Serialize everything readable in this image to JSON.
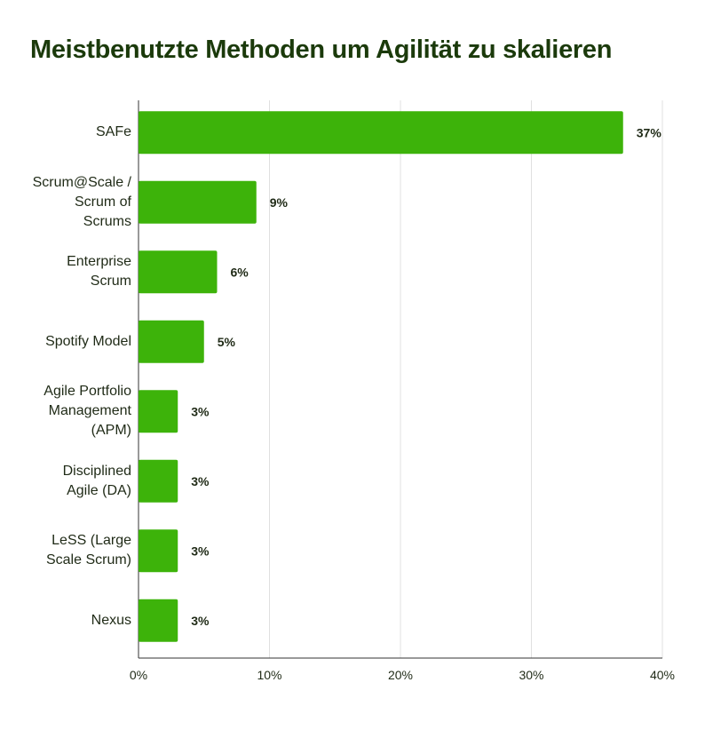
{
  "chart_data": {
    "type": "bar",
    "orientation": "horizontal",
    "title": "Meistbenutzte Methoden um Agilität zu skalieren",
    "categories": [
      "SAFe",
      "Scrum@Scale /\nScrum of\nScrums",
      "Enterprise\nScrum",
      "Spotify Model",
      "Agile Portfolio\nManagement\n(APM)",
      "Disciplined\nAgile (DA)",
      "LeSS (Large\nScale Scrum)",
      "Nexus"
    ],
    "values": [
      37,
      9,
      6,
      5,
      3,
      3,
      3,
      3
    ],
    "data_labels": [
      "37%",
      "9%",
      "6%",
      "5%",
      "3%",
      "3%",
      "3%",
      "3%"
    ],
    "xlim": [
      0,
      40
    ],
    "x_ticks": [
      "0%",
      "10%",
      "20%",
      "30%",
      "40%"
    ],
    "grid": true,
    "colors": {
      "bar": "#3db30a",
      "title": "#1b3a0b",
      "text": "#1f2a16",
      "grid": "#e0e0e0",
      "axis": "#333333"
    }
  }
}
